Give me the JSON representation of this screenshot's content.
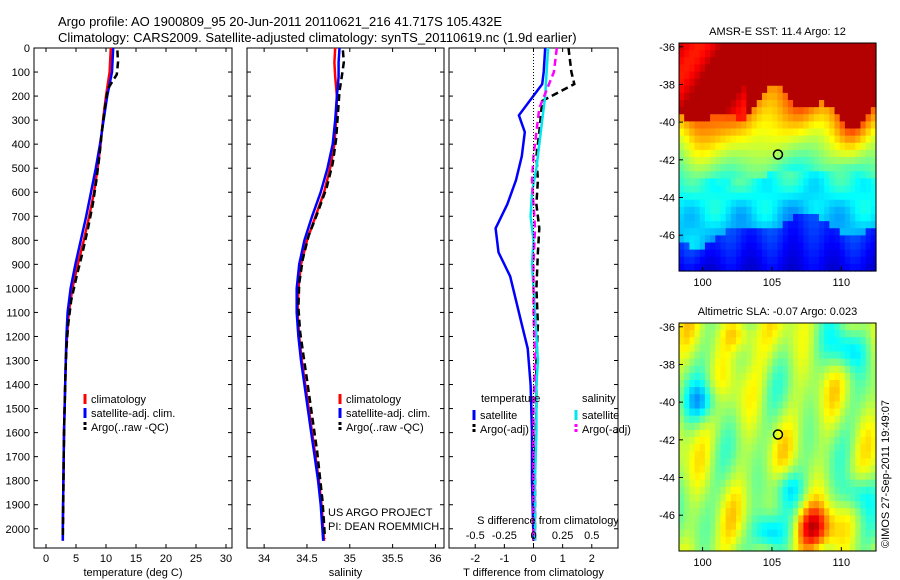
{
  "header": {
    "line1": "Argo profile: AO 1900809_95 20-Jun-2011 20110621_216 41.717S 105.432E",
    "line2": "Climatology: CARS2009. Satellite-adjusted climatology: synTS_20110619.nc (1.9d earlier)"
  },
  "credit": "US ARGO PROJECT",
  "pi": "PI: DEAN ROEMMICH",
  "stamp": "©IMOS 27-Sep-2011 19:49:07",
  "colors": {
    "climatology": "#ff0000",
    "satellite": "#0000ff",
    "argo": "#000000",
    "sal_satellite": "#00e5ee",
    "sal_argo": "#ff00ff"
  },
  "chart_data": [
    {
      "id": "temperature",
      "type": "line",
      "xlabel": "temperature (deg C)",
      "ylabel": "",
      "xlim": [
        -2,
        31
      ],
      "xticks": [
        0,
        5,
        10,
        15,
        20,
        25,
        30
      ],
      "ylim": [
        2080,
        0
      ],
      "yticks": [
        0,
        100,
        200,
        300,
        400,
        500,
        600,
        700,
        800,
        900,
        1000,
        1100,
        1200,
        1300,
        1400,
        1500,
        1600,
        1700,
        1800,
        1900,
        2000
      ],
      "legend": {
        "placement": "lower-center",
        "entries": [
          "climatology",
          "satellite-adj. clim.",
          "Argo(..raw -QC)"
        ]
      },
      "series": [
        {
          "name": "climatology",
          "color": "#ff0000",
          "dash": "",
          "points": [
            [
              10.8,
              0
            ],
            [
              10.7,
              50
            ],
            [
              10.6,
              100
            ],
            [
              10.0,
              200
            ],
            [
              9.5,
              300
            ],
            [
              9.1,
              400
            ],
            [
              8.6,
              500
            ],
            [
              8.0,
              600
            ],
            [
              7.2,
              700
            ],
            [
              6.3,
              800
            ],
            [
              5.3,
              900
            ],
            [
              4.4,
              1000
            ],
            [
              3.8,
              1100
            ],
            [
              3.5,
              1200
            ],
            [
              3.3,
              1300
            ],
            [
              3.2,
              1400
            ],
            [
              3.1,
              1500
            ],
            [
              3.0,
              1600
            ],
            [
              2.95,
              1700
            ],
            [
              2.9,
              1800
            ],
            [
              2.85,
              1900
            ],
            [
              2.8,
              2000
            ],
            [
              2.8,
              2050
            ]
          ]
        },
        {
          "name": "satellite-adj. clim.",
          "color": "#0000ff",
          "dash": "",
          "points": [
            [
              11.2,
              0
            ],
            [
              11.1,
              50
            ],
            [
              11.0,
              100
            ],
            [
              10.2,
              200
            ],
            [
              9.6,
              300
            ],
            [
              9.0,
              400
            ],
            [
              8.3,
              500
            ],
            [
              7.5,
              600
            ],
            [
              6.7,
              700
            ],
            [
              5.8,
              800
            ],
            [
              4.9,
              900
            ],
            [
              4.1,
              1000
            ],
            [
              3.6,
              1100
            ],
            [
              3.4,
              1200
            ],
            [
              3.3,
              1300
            ],
            [
              3.2,
              1400
            ],
            [
              3.1,
              1500
            ],
            [
              3.0,
              1600
            ],
            [
              2.95,
              1700
            ],
            [
              2.9,
              1800
            ],
            [
              2.85,
              1900
            ],
            [
              2.8,
              2000
            ],
            [
              2.8,
              2050
            ]
          ]
        },
        {
          "name": "Argo(..raw -QC)",
          "color": "#000000",
          "dash": "7,4",
          "points": [
            [
              11.9,
              10
            ],
            [
              12.0,
              60
            ],
            [
              11.8,
              110
            ],
            [
              10.3,
              170
            ],
            [
              9.8,
              250
            ],
            [
              9.3,
              350
            ],
            [
              8.9,
              450
            ],
            [
              8.4,
              550
            ],
            [
              7.8,
              650
            ],
            [
              7.0,
              750
            ],
            [
              6.1,
              850
            ],
            [
              5.1,
              950
            ],
            [
              4.2,
              1050
            ],
            [
              3.7,
              1150
            ],
            [
              3.4,
              1250
            ],
            [
              3.25,
              1350
            ],
            [
              3.15,
              1450
            ],
            [
              3.05,
              1550
            ],
            [
              2.95,
              1700
            ],
            [
              2.9,
              1850
            ],
            [
              2.85,
              1950
            ],
            [
              2.8,
              2040
            ]
          ]
        }
      ]
    },
    {
      "id": "salinity",
      "type": "line",
      "xlabel": "salinity",
      "ylabel": "",
      "xlim": [
        33.8,
        36.1
      ],
      "xticks": [
        34,
        34.5,
        35,
        35.5,
        36
      ],
      "ylim": [
        2080,
        0
      ],
      "legend": {
        "placement": "lower-right",
        "entries": [
          "climatology",
          "satellite-adj. clim.",
          "Argo(..raw -QC)"
        ]
      },
      "series": [
        {
          "name": "climatology",
          "color": "#ff0000",
          "dash": "",
          "points": [
            [
              34.83,
              0
            ],
            [
              34.82,
              60
            ],
            [
              34.83,
              120
            ],
            [
              34.85,
              200
            ],
            [
              34.84,
              300
            ],
            [
              34.82,
              400
            ],
            [
              34.77,
              500
            ],
            [
              34.7,
              600
            ],
            [
              34.6,
              700
            ],
            [
              34.5,
              800
            ],
            [
              34.43,
              900
            ],
            [
              34.4,
              1000
            ],
            [
              34.39,
              1100
            ],
            [
              34.41,
              1200
            ],
            [
              34.44,
              1300
            ],
            [
              34.48,
              1400
            ],
            [
              34.52,
              1500
            ],
            [
              34.56,
              1600
            ],
            [
              34.6,
              1700
            ],
            [
              34.64,
              1800
            ],
            [
              34.67,
              1900
            ],
            [
              34.69,
              2000
            ],
            [
              34.7,
              2050
            ]
          ]
        },
        {
          "name": "satellite-adj. clim.",
          "color": "#0000ff",
          "dash": "",
          "points": [
            [
              34.88,
              0
            ],
            [
              34.87,
              60
            ],
            [
              34.87,
              120
            ],
            [
              34.85,
              200
            ],
            [
              34.83,
              300
            ],
            [
              34.8,
              400
            ],
            [
              34.74,
              500
            ],
            [
              34.66,
              600
            ],
            [
              34.56,
              700
            ],
            [
              34.47,
              800
            ],
            [
              34.41,
              900
            ],
            [
              34.38,
              1000
            ],
            [
              34.38,
              1100
            ],
            [
              34.4,
              1200
            ],
            [
              34.43,
              1300
            ],
            [
              34.47,
              1400
            ],
            [
              34.51,
              1500
            ],
            [
              34.55,
              1600
            ],
            [
              34.59,
              1700
            ],
            [
              34.63,
              1800
            ],
            [
              34.66,
              1900
            ],
            [
              34.68,
              2000
            ],
            [
              34.69,
              2050
            ]
          ]
        },
        {
          "name": "Argo(..raw -QC)",
          "color": "#000000",
          "dash": "7,4",
          "points": [
            [
              34.92,
              10
            ],
            [
              34.93,
              60
            ],
            [
              34.91,
              110
            ],
            [
              34.88,
              180
            ],
            [
              34.86,
              280
            ],
            [
              34.84,
              380
            ],
            [
              34.8,
              480
            ],
            [
              34.73,
              580
            ],
            [
              34.63,
              680
            ],
            [
              34.52,
              780
            ],
            [
              34.45,
              880
            ],
            [
              34.41,
              980
            ],
            [
              34.4,
              1080
            ],
            [
              34.42,
              1180
            ],
            [
              34.46,
              1280
            ],
            [
              34.5,
              1380
            ],
            [
              34.54,
              1480
            ],
            [
              34.58,
              1580
            ],
            [
              34.62,
              1680
            ],
            [
              34.65,
              1780
            ],
            [
              34.68,
              1880
            ],
            [
              34.7,
              1980
            ],
            [
              34.71,
              2040
            ]
          ]
        }
      ]
    },
    {
      "id": "difference",
      "type": "line",
      "xlabel": "T difference from climatology",
      "top_xlabel": "S difference from climatology",
      "ylabel": "",
      "xlim": [
        -2.9,
        2.9
      ],
      "xticks": [
        -2,
        -1,
        0,
        1,
        2
      ],
      "top_xticks": [
        "-0.5",
        "-0.25",
        "0",
        "0.25",
        "0.5"
      ],
      "ylim": [
        2080,
        0
      ],
      "legend": {
        "placement": "lower-center",
        "groups": [
          {
            "title": "temperature",
            "entries": [
              "satellite",
              "Argo(-adj)"
            ]
          },
          {
            "title": "salinity",
            "entries": [
              "satellite",
              "Argo(-adj)"
            ]
          }
        ]
      },
      "series": [
        {
          "name": "satellite",
          "group": "temperature",
          "color": "#0000ff",
          "dash": "",
          "points": [
            [
              0.4,
              0
            ],
            [
              0.35,
              100
            ],
            [
              0.3,
              150
            ],
            [
              -0.5,
              280
            ],
            [
              -0.3,
              350
            ],
            [
              -0.4,
              450
            ],
            [
              -0.6,
              550
            ],
            [
              -0.9,
              650
            ],
            [
              -1.3,
              750
            ],
            [
              -1.2,
              850
            ],
            [
              -0.8,
              950
            ],
            [
              -0.6,
              1050
            ],
            [
              -0.4,
              1150
            ],
            [
              -0.2,
              1250
            ],
            [
              -0.1,
              1400
            ],
            [
              -0.05,
              1600
            ],
            [
              -0.05,
              1800
            ],
            [
              0,
              2050
            ]
          ]
        },
        {
          "name": "Argo(-adj)",
          "group": "temperature",
          "color": "#000000",
          "dash": "7,4",
          "points": [
            [
              1.2,
              0
            ],
            [
              1.3,
              100
            ],
            [
              1.4,
              150
            ],
            [
              0.3,
              220
            ],
            [
              0.2,
              350
            ],
            [
              0.1,
              450
            ],
            [
              0.15,
              550
            ],
            [
              0.1,
              650
            ],
            [
              0.2,
              750
            ],
            [
              0.15,
              850
            ],
            [
              0.1,
              1000
            ],
            [
              0.15,
              1150
            ],
            [
              0.1,
              1300
            ],
            [
              0.1,
              1500
            ],
            [
              0.05,
              1700
            ],
            [
              0.05,
              1900
            ],
            [
              0.05,
              2050
            ]
          ]
        },
        {
          "name": "satellite",
          "group": "salinity",
          "color": "#00e5ee",
          "dash": "",
          "points": [
            [
              0.5,
              0
            ],
            [
              0.45,
              100
            ],
            [
              0.4,
              200
            ],
            [
              0.3,
              300
            ],
            [
              0.2,
              400
            ],
            [
              0.1,
              500
            ],
            [
              -0.05,
              600
            ],
            [
              -0.1,
              700
            ],
            [
              0,
              800
            ],
            [
              -0.05,
              900
            ],
            [
              0,
              1000
            ],
            [
              0.05,
              1100
            ],
            [
              0.1,
              1200
            ],
            [
              0.15,
              1300
            ],
            [
              0.1,
              1400
            ],
            [
              0.1,
              1600
            ],
            [
              0.05,
              1800
            ],
            [
              0.05,
              2050
            ]
          ]
        },
        {
          "name": "Argo(-adj)",
          "group": "salinity",
          "color": "#ff00ff",
          "dash": "7,4",
          "points": [
            [
              0.8,
              0
            ],
            [
              0.7,
              100
            ],
            [
              0.2,
              250
            ],
            [
              0.1,
              350
            ],
            [
              0,
              450
            ],
            [
              -0.05,
              550
            ],
            [
              0,
              650
            ],
            [
              0.05,
              750
            ],
            [
              0,
              900
            ],
            [
              0,
              1100
            ],
            [
              0.05,
              1300
            ],
            [
              0,
              1500
            ],
            [
              0,
              1700
            ],
            [
              0,
              1900
            ],
            [
              0,
              2050
            ]
          ]
        }
      ]
    },
    {
      "id": "sst_map",
      "type": "heatmap",
      "title": "AMSR-E SST: 11.4 Argo: 12",
      "xticks": [
        100,
        105,
        110
      ],
      "yticks": [
        -36,
        -38,
        -40,
        -42,
        -44,
        -46
      ],
      "xlim": [
        98.3,
        112.5
      ],
      "ylim": [
        -47.9,
        -35.8
      ],
      "marker": {
        "lon": 105.432,
        "lat": -41.717
      }
    },
    {
      "id": "sla_map",
      "type": "heatmap",
      "title": "Altimetric SLA: -0.07 Argo: 0.023",
      "xticks": [
        100,
        105,
        110
      ],
      "yticks": [
        -36,
        -38,
        -40,
        -42,
        -44,
        -46
      ],
      "xlim": [
        98.3,
        112.5
      ],
      "ylim": [
        -47.9,
        -35.8
      ],
      "marker": {
        "lon": 105.432,
        "lat": -41.717
      }
    }
  ]
}
